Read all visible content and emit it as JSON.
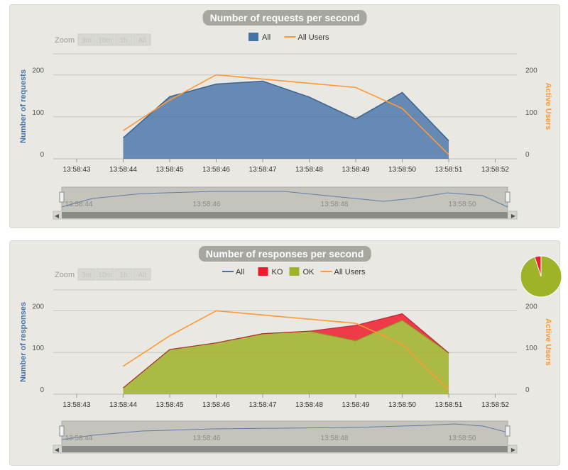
{
  "colors": {
    "all": "#4572a7",
    "ko": "#ed1c2e",
    "ok": "#a0b228",
    "users": "#ff9933"
  },
  "zoom": {
    "label": "Zoom",
    "buttons": [
      "3m",
      "10m",
      "1h",
      "All"
    ]
  },
  "chart_data": [
    {
      "type": "area",
      "title": "Number of requests per second",
      "x": [
        "13:58:44",
        "13:58:45",
        "13:58:46",
        "13:58:47",
        "13:58:48",
        "13:58:49",
        "13:58:50",
        "13:58:51"
      ],
      "x_ticks": [
        "13:58:43",
        "13:58:44",
        "13:58:45",
        "13:58:46",
        "13:58:47",
        "13:58:48",
        "13:58:49",
        "13:58:50",
        "13:58:51",
        "13:58:52"
      ],
      "series": [
        {
          "name": "All",
          "type": "area",
          "axis": "left",
          "values": [
            50,
            148,
            178,
            185,
            147,
            95,
            158,
            43
          ]
        },
        {
          "name": "All Users",
          "type": "line",
          "axis": "right",
          "values": [
            67,
            140,
            200,
            190,
            180,
            170,
            120,
            10
          ]
        }
      ],
      "ylabel": "Number of requests",
      "ylabel_right": "Active Users",
      "ylim": [
        0,
        250
      ],
      "y_ticks": [
        0,
        100,
        200
      ],
      "y2lim": [
        0,
        250
      ],
      "y2_ticks": [
        0,
        100,
        200
      ],
      "legend": "top-center",
      "grid": true,
      "navigator_ticks": [
        "13:58:44",
        "13:58:46",
        "13:58:48",
        "13:58:50"
      ]
    },
    {
      "type": "area",
      "title": "Number of responses per second",
      "x": [
        "13:58:44",
        "13:58:45",
        "13:58:46",
        "13:58:47",
        "13:58:48",
        "13:58:49",
        "13:58:50",
        "13:58:51"
      ],
      "x_ticks": [
        "13:58:43",
        "13:58:44",
        "13:58:45",
        "13:58:46",
        "13:58:47",
        "13:58:48",
        "13:58:49",
        "13:58:50",
        "13:58:51",
        "13:58:52"
      ],
      "series": [
        {
          "name": "All",
          "type": "line",
          "axis": "left",
          "values": [
            15,
            107,
            123,
            145,
            151,
            165,
            193,
            99
          ]
        },
        {
          "name": "KO",
          "type": "area-stacked",
          "axis": "left",
          "values": [
            0,
            0,
            0,
            0,
            0,
            37,
            16,
            0
          ]
        },
        {
          "name": "OK",
          "type": "area-stacked",
          "axis": "left",
          "values": [
            15,
            107,
            123,
            145,
            151,
            128,
            177,
            99
          ]
        },
        {
          "name": "All Users",
          "type": "line",
          "axis": "right",
          "values": [
            67,
            140,
            200,
            190,
            180,
            170,
            120,
            10
          ]
        }
      ],
      "ylabel": "Number of responses",
      "ylabel_right": "Active Users",
      "ylim": [
        0,
        250
      ],
      "y_ticks": [
        0,
        100,
        200
      ],
      "y2lim": [
        0,
        250
      ],
      "y2_ticks": [
        0,
        100,
        200
      ],
      "legend": "top-center",
      "grid": true,
      "pie": {
        "KO_fraction": 0.05,
        "OK_fraction": 0.95
      },
      "navigator_ticks": [
        "13:58:44",
        "13:58:46",
        "13:58:48",
        "13:58:50"
      ]
    }
  ]
}
